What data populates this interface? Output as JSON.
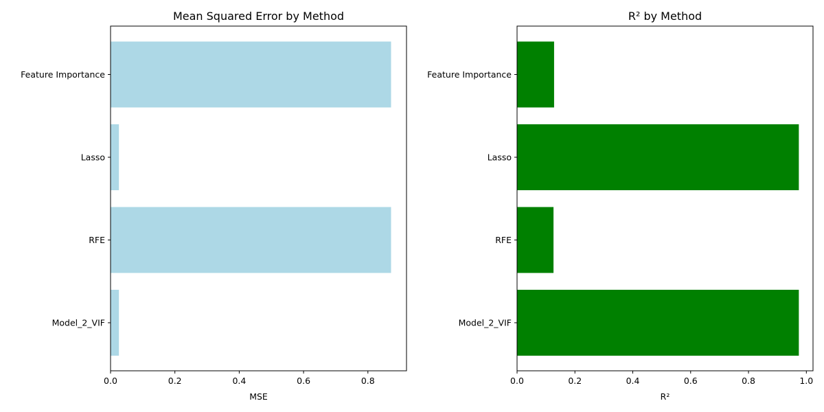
{
  "chart_data": [
    {
      "type": "bar",
      "orientation": "horizontal",
      "title": "Mean Squared Error by Method",
      "xlabel": "MSE",
      "ylabel": "",
      "categories": [
        "Feature Importance",
        "Lasso",
        "RFE",
        "Model_2_VIF"
      ],
      "values": [
        0.872,
        0.026,
        0.872,
        0.026
      ],
      "xlim": [
        0,
        0.92
      ],
      "xticks": [
        "0.0",
        "0.2",
        "0.4",
        "0.6",
        "0.8"
      ],
      "color": "#add8e6",
      "grid": false
    },
    {
      "type": "bar",
      "orientation": "horizontal",
      "title": "R² by Method",
      "xlabel": "R²",
      "ylabel": "",
      "categories": [
        "Feature Importance",
        "Lasso",
        "RFE",
        "Model_2_VIF"
      ],
      "values": [
        0.128,
        0.974,
        0.126,
        0.974
      ],
      "xlim": [
        0,
        1.023
      ],
      "xticks": [
        "0.0",
        "0.2",
        "0.4",
        "0.6",
        "0.8",
        "1.0"
      ],
      "color": "#008000",
      "grid": false
    }
  ]
}
